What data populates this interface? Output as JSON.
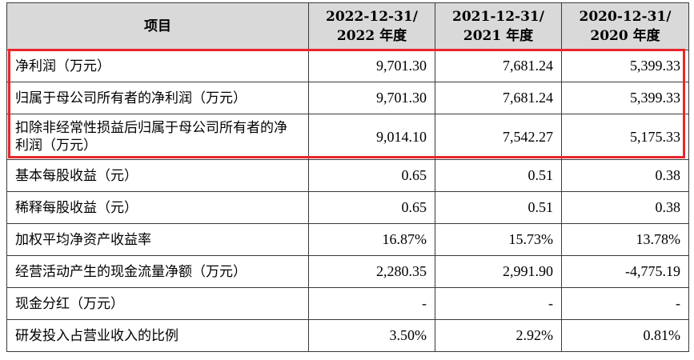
{
  "header": {
    "item": "项目",
    "col1": [
      "2022-12-31/",
      "2022 年度"
    ],
    "col2": [
      "2021-12-31/",
      "2021 年度"
    ],
    "col3": [
      "2020-12-31/",
      "2020 年度"
    ]
  },
  "rows": [
    {
      "label": "净利润（万元）",
      "v2022": "9,701.30",
      "v2021": "7,681.24",
      "v2020": "5,399.33"
    },
    {
      "label": "归属于母公司所有者的净利润（万元）",
      "v2022": "9,701.30",
      "v2021": "7,681.24",
      "v2020": "5,399.33"
    },
    {
      "label": "扣除非经常性损益后归属于母公司所有者的净利润（万元）",
      "v2022": "9,014.10",
      "v2021": "7,542.27",
      "v2020": "5,175.33"
    },
    {
      "label": "基本每股收益（元）",
      "v2022": "0.65",
      "v2021": "0.51",
      "v2020": "0.38"
    },
    {
      "label": "稀释每股收益（元）",
      "v2022": "0.65",
      "v2021": "0.51",
      "v2020": "0.38"
    },
    {
      "label": "加权平均净资产收益率",
      "v2022": "16.87%",
      "v2021": "15.73%",
      "v2020": "13.78%"
    },
    {
      "label": "经营活动产生的现金流量净额（万元）",
      "v2022": "2,280.35",
      "v2021": "2,991.90",
      "v2020": "-4,775.19"
    },
    {
      "label": "现金分红（万元）",
      "v2022": "-",
      "v2021": "-",
      "v2020": "-"
    },
    {
      "label": "研发投入占营业收入的比例",
      "v2022": "3.50%",
      "v2021": "2.92%",
      "v2020": "0.81%"
    }
  ],
  "highlight": {
    "color": "#e8262b",
    "rows_covered": 3
  }
}
